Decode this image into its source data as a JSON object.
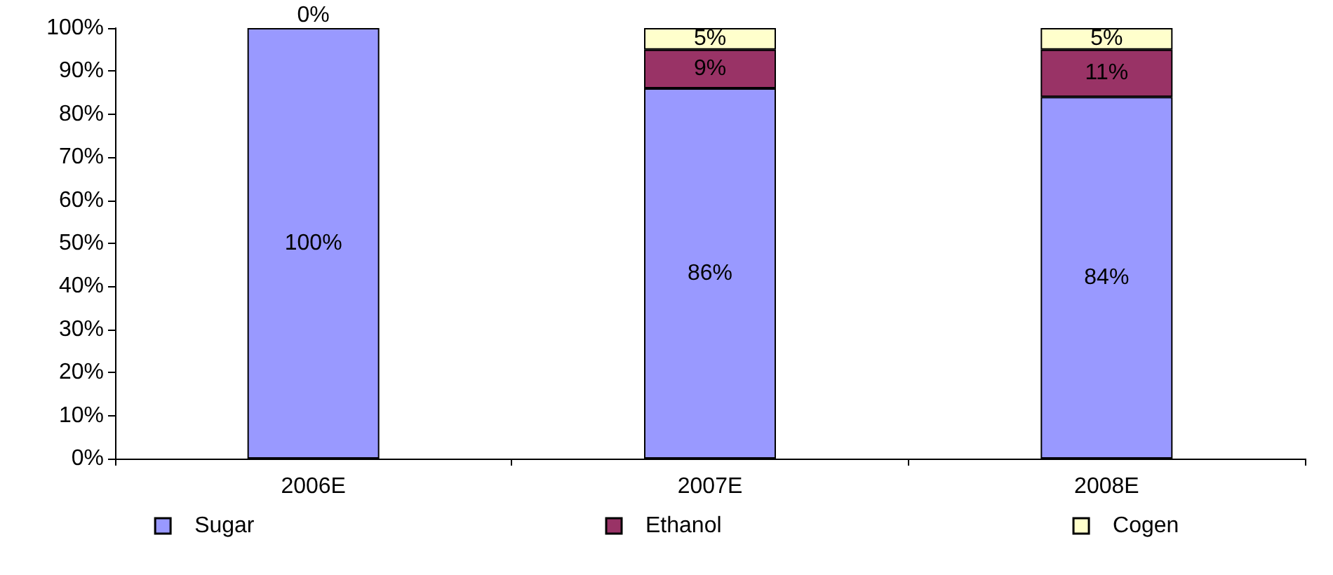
{
  "chart_data": {
    "type": "bar",
    "stacked": true,
    "categories": [
      "2006E",
      "2007E",
      "2008E"
    ],
    "series": [
      {
        "name": "Sugar",
        "color": "#9999ff",
        "values": [
          100,
          86,
          84
        ],
        "value_labels": [
          "100%",
          "86%",
          "84%"
        ]
      },
      {
        "name": "Ethanol",
        "color": "#993366",
        "values": [
          0,
          9,
          11
        ],
        "value_labels": [
          null,
          "9%",
          "11%"
        ]
      },
      {
        "name": "Cogen",
        "color": "#ffffcc",
        "values": [
          0,
          5,
          5
        ],
        "value_labels": [
          "0%",
          "5%",
          "5%"
        ]
      }
    ],
    "ylim": [
      0,
      100
    ],
    "yticks": [
      {
        "value": 0,
        "label": "0%"
      },
      {
        "value": 10,
        "label": "10%"
      },
      {
        "value": 20,
        "label": "20%"
      },
      {
        "value": 30,
        "label": "30%"
      },
      {
        "value": 40,
        "label": "40%"
      },
      {
        "value": 50,
        "label": "50%"
      },
      {
        "value": 60,
        "label": "60%"
      },
      {
        "value": 70,
        "label": "70%"
      },
      {
        "value": 80,
        "label": "80%"
      },
      {
        "value": 90,
        "label": "90%"
      },
      {
        "value": 100,
        "label": "100%"
      }
    ],
    "grid": false,
    "legend": "bottom"
  }
}
